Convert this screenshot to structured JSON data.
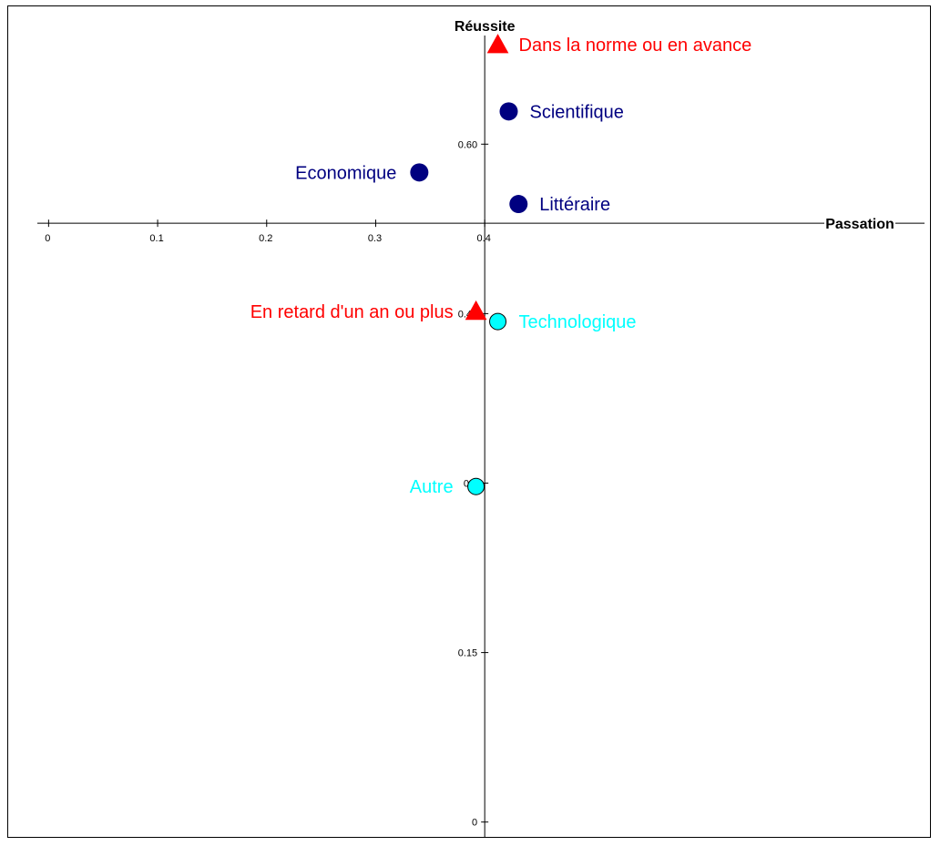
{
  "chart_data": {
    "type": "scatter",
    "title": "",
    "xlabel": "Passation",
    "ylabel": "Réussite",
    "xlim": [
      -0.012,
      0.79
    ],
    "ylim": [
      -0.0075,
      0.7155
    ],
    "x_ticks": [
      {
        "value": 0,
        "label": "0"
      },
      {
        "value": 0.1,
        "label": "0.1"
      },
      {
        "value": 0.2,
        "label": "0.2"
      },
      {
        "value": 0.3,
        "label": "0.3"
      },
      {
        "value": 0.4,
        "label": "0.4"
      }
    ],
    "y_ticks": [
      {
        "value": 0,
        "label": "0"
      },
      {
        "value": 0.15,
        "label": "0.15"
      },
      {
        "value": 0.3,
        "label": "0.3"
      },
      {
        "value": 0.45,
        "label": "0.45"
      },
      {
        "value": 0.6,
        "label": "0.60"
      }
    ],
    "axis_origin": {
      "x": 0.4,
      "y": 0.53
    },
    "grid": false,
    "legend": "none",
    "points": [
      {
        "label": "Dans la norme ou en avance",
        "x": 0.412,
        "y": 0.688,
        "marker": "triangle",
        "color": "#ff0000",
        "label_side": "right"
      },
      {
        "label": "Scientifique",
        "x": 0.422,
        "y": 0.629,
        "marker": "circle",
        "color": "#000080",
        "label_side": "right"
      },
      {
        "label": "Economique",
        "x": 0.34,
        "y": 0.575,
        "marker": "circle",
        "color": "#000080",
        "label_side": "left"
      },
      {
        "label": "Littéraire",
        "x": 0.431,
        "y": 0.547,
        "marker": "circle",
        "color": "#000080",
        "label_side": "right"
      },
      {
        "label": "En retard d'un an ou plus",
        "x": 0.392,
        "y": 0.452,
        "marker": "triangle",
        "color": "#ff0000",
        "label_side": "left"
      },
      {
        "label": "Technologique",
        "x": 0.412,
        "y": 0.443,
        "marker": "circle-outline",
        "color": "#00ffff",
        "label_side": "right"
      },
      {
        "label": "Autre",
        "x": 0.392,
        "y": 0.297,
        "marker": "circle-outline",
        "color": "#00ffff",
        "label_side": "left"
      }
    ]
  }
}
